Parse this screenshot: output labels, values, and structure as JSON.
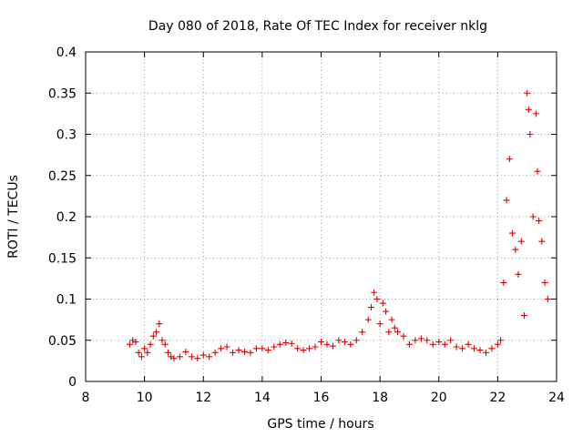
{
  "chart_data": {
    "type": "scatter",
    "title": "Day 080 of 2018, Rate Of TEC Index for receiver nklg",
    "xlabel": "GPS time / hours",
    "ylabel": "ROTI / TECUs",
    "xlim": [
      8,
      24
    ],
    "ylim": [
      0,
      0.4
    ],
    "grid": true,
    "marker": "+",
    "color": "#e00000",
    "x_ticks": [
      {
        "value": 8,
        "label": "8"
      },
      {
        "value": 10,
        "label": "10"
      },
      {
        "value": 12,
        "label": "12"
      },
      {
        "value": 14,
        "label": "14"
      },
      {
        "value": 16,
        "label": "16"
      },
      {
        "value": 18,
        "label": "18"
      },
      {
        "value": 20,
        "label": "20"
      },
      {
        "value": 22,
        "label": "22"
      },
      {
        "value": 24,
        "label": "24"
      }
    ],
    "y_ticks": [
      {
        "value": 0,
        "label": "0"
      },
      {
        "value": 0.05,
        "label": "0.05"
      },
      {
        "value": 0.1,
        "label": "0.1"
      },
      {
        "value": 0.15,
        "label": "0.15"
      },
      {
        "value": 0.2,
        "label": "0.2"
      },
      {
        "value": 0.25,
        "label": "0.25"
      },
      {
        "value": 0.3,
        "label": "0.3"
      },
      {
        "value": 0.35,
        "label": "0.35"
      },
      {
        "value": 0.4,
        "label": "0.4"
      }
    ],
    "series": [
      {
        "name": "ROTI",
        "x": [
          9.5,
          9.6,
          9.7,
          9.8,
          9.9,
          10.0,
          10.1,
          10.2,
          10.3,
          10.4,
          10.5,
          10.6,
          10.7,
          10.8,
          10.9,
          11.0,
          11.2,
          11.4,
          11.6,
          11.8,
          12.0,
          12.2,
          12.4,
          12.6,
          12.8,
          13.0,
          13.2,
          13.4,
          13.6,
          13.8,
          14.0,
          14.2,
          14.4,
          14.6,
          14.8,
          15.0,
          15.2,
          15.4,
          15.6,
          15.8,
          16.0,
          16.2,
          16.4,
          16.6,
          16.8,
          17.0,
          17.2,
          17.4,
          17.6,
          17.7,
          17.8,
          17.9,
          18.0,
          18.1,
          18.2,
          18.3,
          18.4,
          18.5,
          18.6,
          18.8,
          19.0,
          19.2,
          19.4,
          19.6,
          19.8,
          20.0,
          20.2,
          20.4,
          20.6,
          20.8,
          21.0,
          21.2,
          21.4,
          21.6,
          21.8,
          22.0,
          22.1,
          22.2,
          22.3,
          22.4,
          22.5,
          22.6,
          22.7,
          22.8,
          22.9,
          23.0,
          23.05,
          23.1,
          23.2,
          23.3,
          23.35,
          23.4,
          23.5,
          23.6,
          23.7
        ],
        "y": [
          0.045,
          0.05,
          0.048,
          0.035,
          0.03,
          0.04,
          0.035,
          0.045,
          0.055,
          0.06,
          0.07,
          0.05,
          0.045,
          0.035,
          0.03,
          0.028,
          0.03,
          0.036,
          0.03,
          0.028,
          0.032,
          0.03,
          0.035,
          0.04,
          0.042,
          0.035,
          0.038,
          0.036,
          0.035,
          0.04,
          0.04,
          0.038,
          0.042,
          0.045,
          0.047,
          0.046,
          0.04,
          0.038,
          0.04,
          0.042,
          0.048,
          0.045,
          0.043,
          0.05,
          0.048,
          0.045,
          0.05,
          0.06,
          0.075,
          0.09,
          0.108,
          0.1,
          0.07,
          0.095,
          0.085,
          0.06,
          0.075,
          0.065,
          0.06,
          0.055,
          0.045,
          0.05,
          0.052,
          0.05,
          0.045,
          0.048,
          0.045,
          0.05,
          0.042,
          0.04,
          0.045,
          0.04,
          0.038,
          0.035,
          0.04,
          0.045,
          0.05,
          0.12,
          0.22,
          0.27,
          0.18,
          0.16,
          0.13,
          0.17,
          0.08,
          0.35,
          0.33,
          0.3,
          0.2,
          0.325,
          0.255,
          0.195,
          0.17,
          0.12,
          0.1
        ]
      }
    ]
  }
}
